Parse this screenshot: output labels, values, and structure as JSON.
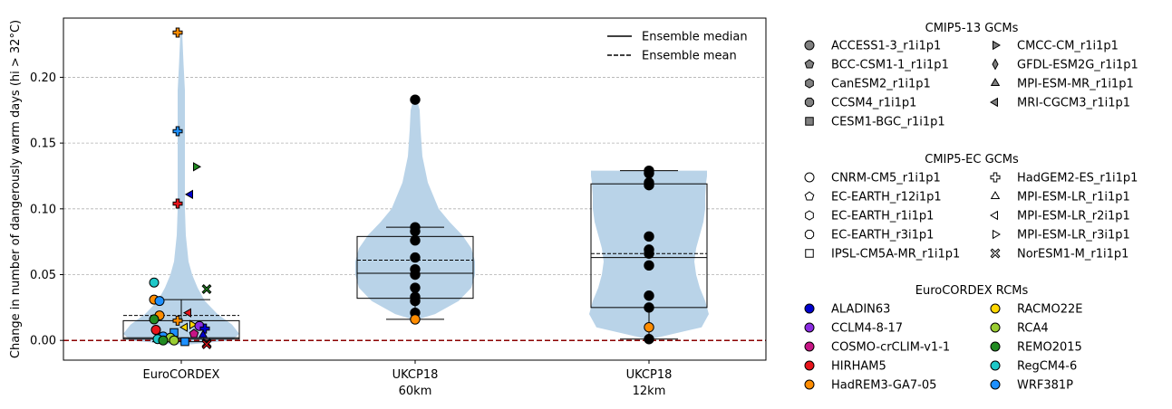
{
  "chart_data": {
    "type": "violin",
    "ylabel": "Change in number of dangerously warm days (hi > 32°C)",
    "ylim": [
      -0.015,
      0.245
    ],
    "yticks": [
      0.0,
      0.05,
      0.1,
      0.15,
      0.2
    ],
    "ytick_labels": [
      "0.00",
      "0.05",
      "0.10",
      "0.15",
      "0.20"
    ],
    "grid": "y-dashed",
    "zero_line_color": "#8b0000",
    "violin_color": "#b9d3e8",
    "categories": [
      {
        "label": [
          "EuroCORDEX"
        ],
        "box": {
          "q1": 0.001,
          "median": 0.002,
          "q3": 0.015,
          "mean": 0.019,
          "whisker_low": -0.001,
          "whisker_high": 0.031
        }
      },
      {
        "label": [
          "UKCP18",
          "60km"
        ],
        "box": {
          "q1": 0.032,
          "median": 0.051,
          "q3": 0.079,
          "mean": 0.061,
          "whisker_low": 0.016,
          "whisker_high": 0.086
        }
      },
      {
        "label": [
          "UKCP18",
          "12km"
        ],
        "box": {
          "q1": 0.025,
          "median": 0.063,
          "q3": 0.119,
          "mean": 0.066,
          "whisker_low": 0.001,
          "whisker_high": 0.129
        }
      }
    ],
    "points": [
      {
        "g": 0,
        "v": 0.234,
        "m": "plus",
        "c": "#ff8c00"
      },
      {
        "g": 0,
        "v": 0.159,
        "m": "plus",
        "c": "#1e90ff"
      },
      {
        "g": 0,
        "v": 0.132,
        "m": "tri-right",
        "c": "#228b22"
      },
      {
        "g": 0,
        "v": 0.111,
        "m": "tri-left",
        "c": "#0000cd"
      },
      {
        "g": 0,
        "v": 0.104,
        "m": "plus",
        "c": "#e8141b"
      },
      {
        "g": 0,
        "v": 0.044,
        "m": "circle",
        "c": "#1ec8c8"
      },
      {
        "g": 0,
        "v": 0.039,
        "m": "x",
        "c": "#228b22"
      },
      {
        "g": 0,
        "v": 0.031,
        "m": "circle",
        "c": "#ff8c00"
      },
      {
        "g": 0,
        "v": 0.03,
        "m": "circle",
        "c": "#1e90ff"
      },
      {
        "g": 0,
        "v": 0.021,
        "m": "tri-left",
        "c": "#e8141b"
      },
      {
        "g": 0,
        "v": 0.019,
        "m": "circle",
        "c": "#ff8c00"
      },
      {
        "g": 0,
        "v": 0.016,
        "m": "circle",
        "c": "#228b22"
      },
      {
        "g": 0,
        "v": 0.015,
        "m": "plus",
        "c": "#ff8c00"
      },
      {
        "g": 0,
        "v": 0.012,
        "m": "tri-right",
        "c": "#ffd700"
      },
      {
        "g": 0,
        "v": 0.011,
        "m": "circle",
        "c": "#8a2be2"
      },
      {
        "g": 0,
        "v": 0.01,
        "m": "tri-left",
        "c": "#ffd700"
      },
      {
        "g": 0,
        "v": 0.009,
        "m": "plus",
        "c": "#0000cd"
      },
      {
        "g": 0,
        "v": 0.008,
        "m": "circle",
        "c": "#e8141b"
      },
      {
        "g": 0,
        "v": 0.006,
        "m": "square",
        "c": "#1e90ff"
      },
      {
        "g": 0,
        "v": 0.005,
        "m": "pentagon",
        "c": "#c71585"
      },
      {
        "g": 0,
        "v": 0.004,
        "m": "tri-up",
        "c": "#0000cd"
      },
      {
        "g": 0,
        "v": 0.003,
        "m": "circle",
        "c": "#1e90ff"
      },
      {
        "g": 0,
        "v": 0.002,
        "m": "circle",
        "c": "#9acd32"
      },
      {
        "g": 0,
        "v": 0.001,
        "m": "circle",
        "c": "#1ec8c8"
      },
      {
        "g": 0,
        "v": 0.0,
        "m": "circle",
        "c": "#9acd32"
      },
      {
        "g": 0,
        "v": 0.0,
        "m": "circle",
        "c": "#228b22"
      },
      {
        "g": 0,
        "v": -0.001,
        "m": "square",
        "c": "#1e90ff"
      },
      {
        "g": 0,
        "v": -0.002,
        "m": "x",
        "c": "#1ec8c8"
      },
      {
        "g": 0,
        "v": -0.003,
        "m": "x",
        "c": "#e8141b"
      },
      {
        "g": 1,
        "v": 0.183,
        "m": "circle",
        "c": "#000000"
      },
      {
        "g": 1,
        "v": 0.086,
        "m": "circle",
        "c": "#000000"
      },
      {
        "g": 1,
        "v": 0.083,
        "m": "circle",
        "c": "#000000"
      },
      {
        "g": 1,
        "v": 0.076,
        "m": "circle",
        "c": "#000000"
      },
      {
        "g": 1,
        "v": 0.063,
        "m": "circle",
        "c": "#000000"
      },
      {
        "g": 1,
        "v": 0.054,
        "m": "circle",
        "c": "#000000"
      },
      {
        "g": 1,
        "v": 0.05,
        "m": "circle",
        "c": "#000000"
      },
      {
        "g": 1,
        "v": 0.04,
        "m": "circle",
        "c": "#000000"
      },
      {
        "g": 1,
        "v": 0.033,
        "m": "circle",
        "c": "#000000"
      },
      {
        "g": 1,
        "v": 0.03,
        "m": "circle",
        "c": "#000000"
      },
      {
        "g": 1,
        "v": 0.021,
        "m": "circle",
        "c": "#000000"
      },
      {
        "g": 1,
        "v": 0.016,
        "m": "circle",
        "c": "#ff8c00"
      },
      {
        "g": 2,
        "v": 0.129,
        "m": "circle",
        "c": "#000000"
      },
      {
        "g": 2,
        "v": 0.127,
        "m": "circle",
        "c": "#000000"
      },
      {
        "g": 2,
        "v": 0.12,
        "m": "circle",
        "c": "#000000"
      },
      {
        "g": 2,
        "v": 0.118,
        "m": "circle",
        "c": "#000000"
      },
      {
        "g": 2,
        "v": 0.079,
        "m": "circle",
        "c": "#000000"
      },
      {
        "g": 2,
        "v": 0.069,
        "m": "circle",
        "c": "#000000"
      },
      {
        "g": 2,
        "v": 0.066,
        "m": "circle",
        "c": "#000000"
      },
      {
        "g": 2,
        "v": 0.057,
        "m": "circle",
        "c": "#000000"
      },
      {
        "g": 2,
        "v": 0.034,
        "m": "circle",
        "c": "#000000"
      },
      {
        "g": 2,
        "v": 0.025,
        "m": "circle",
        "c": "#000000"
      },
      {
        "g": 2,
        "v": 0.01,
        "m": "circle",
        "c": "#ff8c00"
      },
      {
        "g": 2,
        "v": 0.001,
        "m": "circle",
        "c": "#000000"
      }
    ],
    "violins": [
      {
        "g": 0,
        "profile": [
          [
            -0.003,
            10
          ],
          [
            0.0,
            56
          ],
          [
            0.005,
            64
          ],
          [
            0.012,
            56
          ],
          [
            0.02,
            40
          ],
          [
            0.03,
            26
          ],
          [
            0.04,
            18
          ],
          [
            0.05,
            12
          ],
          [
            0.06,
            8
          ],
          [
            0.08,
            5
          ],
          [
            0.1,
            4
          ],
          [
            0.13,
            4
          ],
          [
            0.16,
            4
          ],
          [
            0.19,
            4
          ],
          [
            0.21,
            2.5
          ],
          [
            0.234,
            1
          ]
        ]
      },
      {
        "g": 1,
        "profile": [
          [
            0.016,
            3
          ],
          [
            0.02,
            22
          ],
          [
            0.03,
            48
          ],
          [
            0.04,
            62
          ],
          [
            0.05,
            66
          ],
          [
            0.06,
            66
          ],
          [
            0.07,
            62
          ],
          [
            0.08,
            52
          ],
          [
            0.09,
            38
          ],
          [
            0.1,
            26
          ],
          [
            0.12,
            14
          ],
          [
            0.14,
            8
          ],
          [
            0.16,
            6
          ],
          [
            0.175,
            5
          ],
          [
            0.183,
            2
          ]
        ]
      },
      {
        "g": 2,
        "profile": [
          [
            0.001,
            2
          ],
          [
            0.01,
            58
          ],
          [
            0.02,
            66
          ],
          [
            0.03,
            62
          ],
          [
            0.04,
            56
          ],
          [
            0.05,
            52
          ],
          [
            0.06,
            50
          ],
          [
            0.07,
            52
          ],
          [
            0.08,
            56
          ],
          [
            0.09,
            60
          ],
          [
            0.1,
            62
          ],
          [
            0.11,
            62
          ],
          [
            0.12,
            63
          ],
          [
            0.125,
            64
          ],
          [
            0.129,
            64
          ]
        ]
      }
    ],
    "legend_plot": {
      "placement": "top-right",
      "items": [
        {
          "label": "Ensemble median",
          "style": "solid"
        },
        {
          "label": "Ensemble mean",
          "style": "dashed"
        }
      ]
    },
    "legend_gcm13": {
      "title": "CMIP5-13 GCMs",
      "col1": [
        {
          "label": "ACCESS1-3_r1i1p1",
          "m": "circle"
        },
        {
          "label": "BCC-CSM1-1_r1i1p1",
          "m": "pentagon"
        },
        {
          "label": "CanESM2_r1i1p1",
          "m": "hexagon"
        },
        {
          "label": "CCSM4_r1i1p1",
          "m": "octagon"
        },
        {
          "label": "CESM1-BGC_r1i1p1",
          "m": "square"
        }
      ],
      "col2": [
        {
          "label": "CMCC-CM_r1i1p1",
          "m": "tri-right"
        },
        {
          "label": "GFDL-ESM2G_r1i1p1",
          "m": "diamond"
        },
        {
          "label": "MPI-ESM-MR_r1i1p1",
          "m": "tri-up"
        },
        {
          "label": "MRI-CGCM3_r1i1p1",
          "m": "tri-left"
        }
      ]
    },
    "legend_gcmec": {
      "title": "CMIP5-EC GCMs",
      "col1": [
        {
          "label": "CNRM-CM5_r1i1p1",
          "m": "circle"
        },
        {
          "label": "EC-EARTH_r12i1p1",
          "m": "pentagon"
        },
        {
          "label": "EC-EARTH_r1i1p1",
          "m": "hexagon"
        },
        {
          "label": "EC-EARTH_r3i1p1",
          "m": "octagon"
        },
        {
          "label": "IPSL-CM5A-MR_r1i1p1",
          "m": "square"
        }
      ],
      "col2": [
        {
          "label": "HadGEM2-ES_r1i1p1",
          "m": "plus"
        },
        {
          "label": "MPI-ESM-LR_r1i1p1",
          "m": "tri-up"
        },
        {
          "label": "MPI-ESM-LR_r2i1p1",
          "m": "tri-left"
        },
        {
          "label": "MPI-ESM-LR_r3i1p1",
          "m": "tri-right"
        },
        {
          "label": "NorESM1-M_r1i1p1",
          "m": "x"
        }
      ]
    },
    "legend_rcm": {
      "title": "EuroCORDEX RCMs",
      "col1": [
        {
          "label": "ALADIN63",
          "c": "#0000cd"
        },
        {
          "label": "CCLM4-8-17",
          "c": "#8a2be2"
        },
        {
          "label": "COSMO-crCLIM-v1-1",
          "c": "#c71585"
        },
        {
          "label": "HIRHAM5",
          "c": "#e8141b"
        },
        {
          "label": "HadREM3-GA7-05",
          "c": "#ff8c00"
        }
      ],
      "col2": [
        {
          "label": "RACMO22E",
          "c": "#ffd700"
        },
        {
          "label": "RCA4",
          "c": "#9acd32"
        },
        {
          "label": "REMO2015",
          "c": "#228b22"
        },
        {
          "label": "RegCM4-6",
          "c": "#1ec8c8"
        },
        {
          "label": "WRF381P",
          "c": "#1e90ff"
        }
      ]
    }
  }
}
